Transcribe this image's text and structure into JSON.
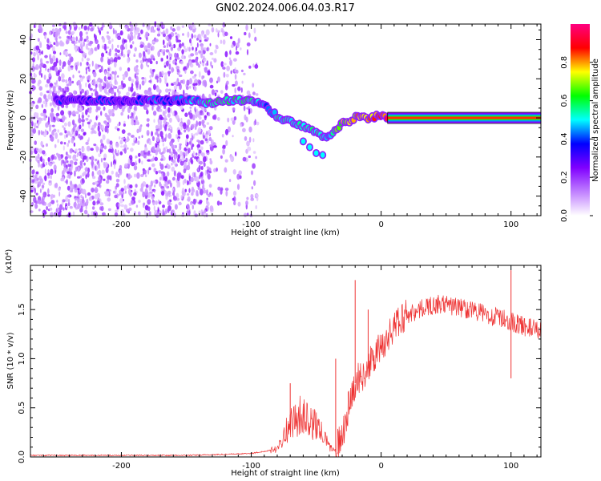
{
  "title": "GN02.2024.006.04.03.R17",
  "chart_data": [
    {
      "type": "heatmap",
      "xlabel": "Height of straight line (km)",
      "ylabel": "Frequency (Hz)",
      "xlim": [
        -270,
        123
      ],
      "ylim": [
        -50,
        48
      ],
      "x_ticks": [
        -200,
        -100,
        0,
        100
      ],
      "y_ticks": [
        -40,
        -20,
        0,
        20,
        40
      ],
      "grid": false,
      "colorbar": {
        "label": "Normalized spectral amplitude",
        "range": [
          0.0,
          1.0
        ],
        "ticks": [
          0.0,
          0.2,
          0.4,
          0.6,
          0.8
        ],
        "colormap": [
          "#ffffff",
          "#c080ff",
          "#8000ff",
          "#0000ff",
          "#00ffff",
          "#00ff00",
          "#ffff00",
          "#ff0000",
          "#ff0080"
        ]
      },
      "ridge": {
        "name": "",
        "x": [
          -250,
          -230,
          -210,
          -190,
          -170,
          -150,
          -135,
          -125,
          -115,
          -100,
          -90,
          -80,
          -70,
          -60,
          -50,
          -45,
          -40,
          -30,
          -20,
          -10,
          0,
          10,
          50,
          100,
          123
        ],
        "y": [
          9,
          9,
          9,
          9,
          9,
          9,
          8,
          8,
          9,
          9,
          6,
          1,
          -2,
          -4,
          -7,
          -9,
          -9,
          -3,
          0,
          0,
          1,
          0,
          0,
          0,
          0
        ],
        "amplitude": [
          0.35,
          0.35,
          0.35,
          0.35,
          0.4,
          0.4,
          0.55,
          0.6,
          0.55,
          0.55,
          0.4,
          0.5,
          0.55,
          0.5,
          0.55,
          0.55,
          0.5,
          0.7,
          0.75,
          0.8,
          0.85,
          0.9,
          0.9,
          0.9,
          0.9
        ]
      },
      "branch": {
        "x": [
          -60,
          -55,
          -50,
          -45
        ],
        "y": [
          -12,
          -15,
          -18,
          -19
        ]
      }
    },
    {
      "type": "line",
      "xlabel": "Height of straight line (km)",
      "ylabel": "SNR (10 * v/v)",
      "y_scale_label": "(x10⁴)",
      "y_multiplier": 10000,
      "xlim": [
        -270,
        123
      ],
      "ylim": [
        0.0,
        1.95
      ],
      "x_ticks": [
        -200,
        -100,
        0,
        100
      ],
      "y_ticks": [
        0.0,
        0.5,
        1.0,
        1.5
      ],
      "y_tick_labels": [
        "0.0",
        "0.5",
        "1.0",
        "1.5"
      ],
      "color": "#ee3333",
      "series": [
        {
          "name": "",
          "x": [
            -270,
            -200,
            -150,
            -120,
            -100,
            -90,
            -80,
            -75,
            -70,
            -65,
            -60,
            -55,
            -50,
            -45,
            -40,
            -35,
            -30,
            -25,
            -20,
            -15,
            -10,
            -5,
            0,
            10,
            20,
            30,
            40,
            50,
            60,
            70,
            80,
            90,
            100,
            110,
            123
          ],
          "y": [
            0.01,
            0.01,
            0.01,
            0.02,
            0.03,
            0.05,
            0.08,
            0.2,
            0.3,
            0.35,
            0.4,
            0.3,
            0.3,
            0.2,
            0.1,
            0.05,
            0.2,
            0.5,
            0.75,
            0.8,
            0.9,
            1.0,
            1.1,
            1.3,
            1.45,
            1.5,
            1.55,
            1.55,
            1.52,
            1.5,
            1.45,
            1.42,
            1.38,
            1.33,
            1.28
          ]
        }
      ],
      "spikes": [
        {
          "x": -20,
          "y": 1.8
        },
        {
          "x": -35,
          "y": 1.0
        },
        {
          "x": -70,
          "y": 0.75
        },
        {
          "x": -10,
          "y": 1.5
        },
        {
          "x": 100,
          "y": 1.9
        },
        {
          "x": 100,
          "y": 0.8
        }
      ]
    }
  ]
}
